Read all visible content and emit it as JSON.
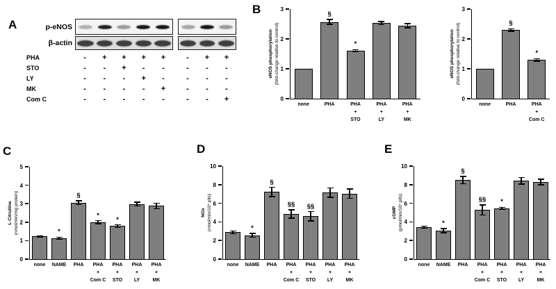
{
  "panel_labels": {
    "a": "A",
    "b": "B",
    "c": "C",
    "d": "D",
    "e": "E"
  },
  "colors": {
    "bar_fill": "#7f7f7f",
    "bar_border": "#000000",
    "band_color": "#1a1a1a",
    "blot_bg": "#f4f4f4",
    "actin_bg": "#dedede"
  },
  "panelA": {
    "band_rows": [
      {
        "label": "p-eNOS",
        "left_intensities": [
          0.3,
          0.95,
          0.4,
          1.0,
          1.0
        ],
        "right_intensities": [
          0.35,
          1.0,
          0.4
        ],
        "band_h": 6,
        "band_w": 0.72
      },
      {
        "label": "β-actin",
        "left_intensities": [
          0.8,
          0.8,
          0.8,
          0.8,
          0.8
        ],
        "right_intensities": [
          0.8,
          0.8,
          0.8
        ],
        "band_h": 9,
        "band_w": 0.84
      }
    ],
    "treatments": [
      {
        "label": "PHA",
        "left": [
          "-",
          "+",
          "+",
          "+",
          "+"
        ],
        "right": [
          "-",
          "+",
          "+"
        ]
      },
      {
        "label": "STO",
        "left": [
          "-",
          "-",
          "+",
          "-",
          "-"
        ],
        "right": [
          "-",
          "-",
          "-"
        ]
      },
      {
        "label": "LY",
        "left": [
          "-",
          "-",
          "-",
          "+",
          "-"
        ],
        "right": [
          "-",
          "-",
          "-"
        ]
      },
      {
        "label": "MK",
        "left": [
          "-",
          "-",
          "-",
          "-",
          "+"
        ],
        "right": [
          "-",
          "-",
          "-"
        ]
      },
      {
        "label": "Com C",
        "left": [
          "-",
          "-",
          "-",
          "-",
          "-"
        ],
        "right": [
          "-",
          "-",
          "+"
        ]
      }
    ]
  },
  "chart_data": [
    {
      "id": "b_left",
      "type": "bar",
      "ylabel_line1": "eNOS phosphorylation",
      "ylabel_line2": "(fold-change relative to control)",
      "ylim": [
        0,
        3
      ],
      "yticks": [
        0,
        1,
        2,
        3
      ],
      "categories": [
        [
          "none"
        ],
        [
          "PHA"
        ],
        [
          "PHA",
          "+",
          "STO"
        ],
        [
          "PHA",
          "+",
          "LY"
        ],
        [
          "PHA",
          "+",
          "MK"
        ]
      ],
      "values": [
        1.0,
        2.57,
        1.61,
        2.53,
        2.44
      ],
      "errors": [
        0,
        0.08,
        0.03,
        0.05,
        0.07
      ],
      "annotations": [
        "",
        "§",
        "*",
        "",
        ""
      ]
    },
    {
      "id": "b_right",
      "type": "bar",
      "ylabel_line1": "eNOS phosphorylation",
      "ylabel_line2": "(fold-change relative to control)",
      "ylim": [
        0,
        3
      ],
      "yticks": [
        0,
        1,
        2,
        3
      ],
      "categories": [
        [
          "none"
        ],
        [
          "PHA"
        ],
        [
          "PHA",
          "+",
          "Com C"
        ]
      ],
      "values": [
        1.0,
        2.3,
        1.3
      ],
      "errors": [
        0,
        0.04,
        0.04
      ],
      "annotations": [
        "",
        "§",
        "*"
      ]
    },
    {
      "id": "c",
      "type": "bar",
      "ylabel_line1": "L-Citrulline",
      "ylabel_line2": "(nmol/min/mg protein)",
      "ylim": [
        0,
        5
      ],
      "yticks": [
        0,
        1,
        2,
        3,
        4,
        5
      ],
      "categories": [
        [
          "none"
        ],
        [
          "NAME"
        ],
        [
          "PHA"
        ],
        [
          "PHA",
          "+",
          "Com C"
        ],
        [
          "PHA",
          "+",
          "STO"
        ],
        [
          "PHA",
          "+",
          "LY"
        ],
        [
          "PHA",
          "+",
          "MK"
        ]
      ],
      "values": [
        1.23,
        1.13,
        3.05,
        2.0,
        1.79,
        2.98,
        2.88
      ],
      "errors": [
        0.03,
        0.06,
        0.1,
        0.08,
        0.07,
        0.1,
        0.15
      ],
      "annotations": [
        "",
        "*",
        "§",
        "*",
        "*",
        "",
        ""
      ]
    },
    {
      "id": "d",
      "type": "bar",
      "ylabel_line1": "NOx",
      "ylabel_line2": "(nmol/min/10⁵ plts)",
      "ylim": [
        0,
        10
      ],
      "yticks": [
        0,
        2,
        4,
        6,
        8,
        10
      ],
      "categories": [
        [
          "none"
        ],
        [
          "NAME"
        ],
        [
          "PHA"
        ],
        [
          "PHA",
          "+",
          "Com C"
        ],
        [
          "PHA",
          "+",
          "STO"
        ],
        [
          "PHA",
          "+",
          "LY"
        ],
        [
          "PHA",
          "+",
          "MK"
        ]
      ],
      "values": [
        2.89,
        2.56,
        7.21,
        4.85,
        4.6,
        7.14,
        7.04
      ],
      "errors": [
        0.15,
        0.2,
        0.5,
        0.45,
        0.5,
        0.5,
        0.5
      ],
      "annotations": [
        "",
        "*",
        "§",
        "§§",
        "§§",
        "",
        ""
      ]
    },
    {
      "id": "e",
      "type": "bar",
      "ylabel_line1": "cGMP",
      "ylabel_line2": "(pmol/min/10⁵ plts)",
      "ylim": [
        0,
        10
      ],
      "yticks": [
        0,
        2,
        4,
        6,
        8,
        10
      ],
      "categories": [
        [
          "none"
        ],
        [
          "NAME"
        ],
        [
          "PHA"
        ],
        [
          "PHA",
          "+",
          "Com C"
        ],
        [
          "PHA",
          "+",
          "STO"
        ],
        [
          "PHA",
          "+",
          "LY"
        ],
        [
          "PHA",
          "+",
          "MK"
        ]
      ],
      "values": [
        3.44,
        3.07,
        8.49,
        5.28,
        5.45,
        8.42,
        8.29
      ],
      "errors": [
        0.12,
        0.22,
        0.4,
        0.55,
        0.12,
        0.35,
        0.3
      ],
      "annotations": [
        "",
        "*",
        "§",
        "§§",
        "*",
        "",
        ""
      ]
    }
  ]
}
